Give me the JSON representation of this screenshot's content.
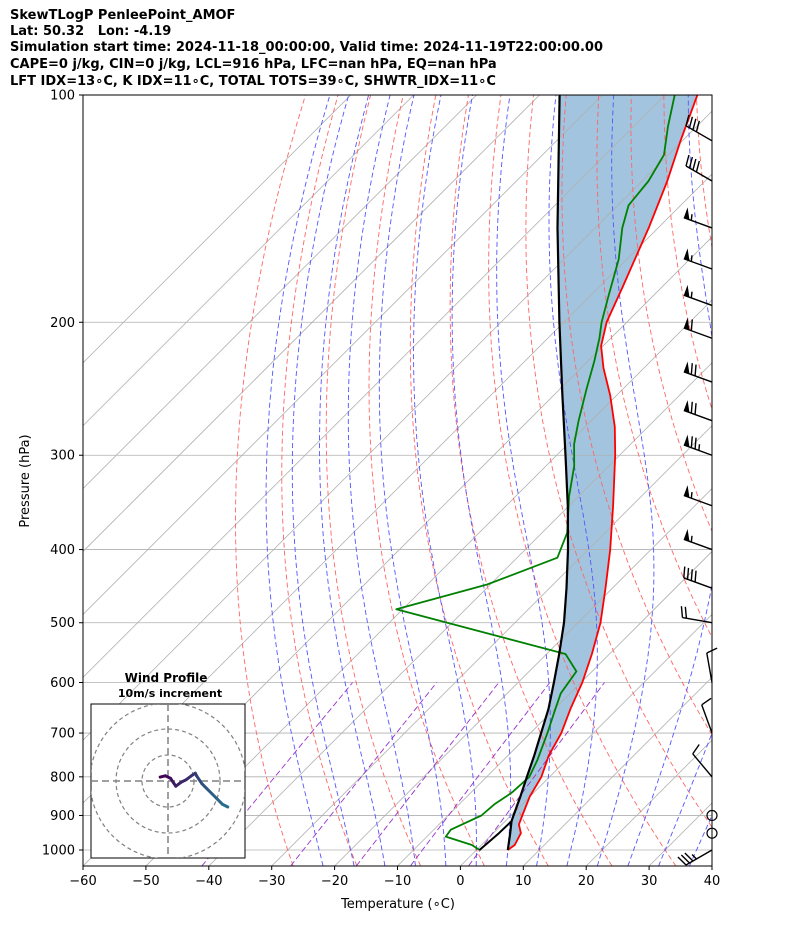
{
  "header": {
    "line1": "SkewTLogP PenleePoint_AMOF",
    "line2": "Lat: 50.32   Lon: -4.19",
    "line3": "Simulation start time: 2024-11-18_00:00:00, Valid time: 2024-11-19T22:00:00.00",
    "line4": "CAPE=0 j/kg, CIN=0 j/kg, LCL=916 hPa, LFC=nan hPa, EQ=nan hPa",
    "line5": "LFT IDX=13∘C, K IDX=11∘C, TOTAL TOTS=39∘C, SHWTR_IDX=11∘C"
  },
  "chart_data": [
    {
      "type": "line",
      "subtype": "skew-t log-p",
      "xlabel": "Temperature (∘C)",
      "ylabel": "Pressure (hPa)",
      "xlim": [
        -60,
        40
      ],
      "ylim": [
        1050,
        100
      ],
      "yscale": "log",
      "x_ticks": [
        -60,
        -50,
        -40,
        -30,
        -20,
        -10,
        0,
        10,
        20,
        30,
        40
      ],
      "y_ticks": [
        1000,
        900,
        800,
        700,
        600,
        500,
        400,
        300,
        200,
        100
      ],
      "grid": true,
      "colors": {
        "temperature": "#ff0000",
        "dewpoint": "#008000",
        "parcel": "#000000",
        "shading": "#a2c4de",
        "dry_adiabat": "#ff6666",
        "moist_adiabat": "#5555ff",
        "mixing_ratio": "#9933cc"
      },
      "series": [
        {
          "role": "temperature",
          "points": [
            [
              1000,
              5.0
            ],
            [
              985,
              5.3
            ],
            [
              950,
              4.4
            ],
            [
              925,
              2.7
            ],
            [
              900,
              1.8
            ],
            [
              850,
              0.0
            ],
            [
              800,
              -1.3
            ],
            [
              750,
              -3.5
            ],
            [
              700,
              -5.1
            ],
            [
              650,
              -7.5
            ],
            [
              600,
              -9.8
            ],
            [
              550,
              -12.8
            ],
            [
              500,
              -16.4
            ],
            [
              450,
              -21.1
            ],
            [
              400,
              -26.5
            ],
            [
              350,
              -33.0
            ],
            [
              300,
              -40.7
            ],
            [
              275,
              -45.3
            ],
            [
              250,
              -51.0
            ],
            [
              230,
              -56.4
            ],
            [
              215,
              -60.3
            ],
            [
              200,
              -63.2
            ],
            [
              180,
              -66.2
            ],
            [
              150,
              -71.5
            ],
            [
              130,
              -76.0
            ],
            [
              115,
              -80.3
            ],
            [
              100,
              -84.9
            ]
          ]
        },
        {
          "role": "dewpoint",
          "points": [
            [
              1000,
              0.5
            ],
            [
              985,
              -1.5
            ],
            [
              960,
              -7.0
            ],
            [
              940,
              -7.3
            ],
            [
              900,
              -4.7
            ],
            [
              870,
              -4.4
            ],
            [
              840,
              -3.5
            ],
            [
              800,
              -3.2
            ],
            [
              760,
              -4.6
            ],
            [
              700,
              -7.3
            ],
            [
              650,
              -9.9
            ],
            [
              620,
              -11.5
            ],
            [
              580,
              -12.5
            ],
            [
              550,
              -17.0
            ],
            [
              480,
              -51.0
            ],
            [
              445,
              -40.5
            ],
            [
              410,
              -33.6
            ],
            [
              380,
              -36.0
            ],
            [
              340,
              -41.5
            ],
            [
              310,
              -45.5
            ],
            [
              290,
              -49.0
            ],
            [
              270,
              -52.0
            ],
            [
              245,
              -55.8
            ],
            [
              225,
              -59.0
            ],
            [
              210,
              -61.8
            ],
            [
              200,
              -64.0
            ],
            [
              185,
              -67.0
            ],
            [
              165,
              -71.3
            ],
            [
              150,
              -75.7
            ],
            [
              140,
              -78.3
            ],
            [
              130,
              -79.0
            ],
            [
              120,
              -80.7
            ],
            [
              110,
              -84.6
            ],
            [
              100,
              -88.5
            ]
          ]
        },
        {
          "role": "parcel",
          "points": [
            [
              1000,
              5.0
            ],
            [
              950,
              2.7
            ],
            [
              916,
              1.0
            ],
            [
              900,
              0.4
            ],
            [
              850,
              -1.5
            ],
            [
              800,
              -3.6
            ],
            [
              750,
              -5.8
            ],
            [
              700,
              -8.3
            ],
            [
              650,
              -11.0
            ],
            [
              600,
              -14.3
            ],
            [
              550,
              -18.0
            ],
            [
              500,
              -22.2
            ],
            [
              450,
              -27.3
            ],
            [
              400,
              -33.2
            ],
            [
              350,
              -40.2
            ],
            [
              300,
              -48.6
            ],
            [
              250,
              -58.6
            ],
            [
              200,
              -70.7
            ],
            [
              150,
              -86.0
            ],
            [
              100,
              -106.8
            ]
          ]
        },
        {
          "role": "dewpoint-to-LCL",
          "points": [
            [
              1000,
              0.5
            ],
            [
              950,
              0.9
            ],
            [
              916,
              1.0
            ]
          ]
        }
      ],
      "wind_barbs": [
        {
          "p": 1000,
          "speed": 35,
          "dir": 240
        },
        {
          "p": 950,
          "speed": 0
        },
        {
          "p": 900,
          "speed": 0
        },
        {
          "p": 800,
          "speed": 10,
          "dir": 320
        },
        {
          "p": 700,
          "speed": 10,
          "dir": 340
        },
        {
          "p": 600,
          "speed": 10,
          "dir": 350
        },
        {
          "p": 500,
          "speed": 20,
          "dir": 280
        },
        {
          "p": 450,
          "speed": 40,
          "dir": 290
        },
        {
          "p": 400,
          "speed": 55,
          "dir": 290
        },
        {
          "p": 350,
          "speed": 55,
          "dir": 290
        },
        {
          "p": 300,
          "speed": 75,
          "dir": 290
        },
        {
          "p": 270,
          "speed": 70,
          "dir": 290
        },
        {
          "p": 240,
          "speed": 70,
          "dir": 290
        },
        {
          "p": 210,
          "speed": 60,
          "dir": 290
        },
        {
          "p": 190,
          "speed": 55,
          "dir": 290
        },
        {
          "p": 170,
          "speed": 55,
          "dir": 290
        },
        {
          "p": 150,
          "speed": 55,
          "dir": 290
        },
        {
          "p": 130,
          "speed": 40,
          "dir": 300
        },
        {
          "p": 115,
          "speed": 40,
          "dir": 300
        }
      ]
    },
    {
      "type": "line",
      "subtype": "hodograph",
      "title": "Wind Profile",
      "subtitle": "10m/s increment",
      "rings": [
        10,
        20,
        30
      ],
      "points": [
        [
          -3,
          1.5
        ],
        [
          -1,
          2
        ],
        [
          1,
          1
        ],
        [
          2,
          -0.5
        ],
        [
          3,
          -2
        ],
        [
          5,
          -0.5
        ],
        [
          7,
          0.5
        ],
        [
          9,
          2
        ],
        [
          10.5,
          3
        ],
        [
          11,
          2
        ],
        [
          12,
          0.5
        ],
        [
          13,
          -1
        ],
        [
          15,
          -3
        ],
        [
          17,
          -5
        ],
        [
          19,
          -7
        ],
        [
          21,
          -9
        ],
        [
          23,
          -10
        ]
      ]
    }
  ]
}
